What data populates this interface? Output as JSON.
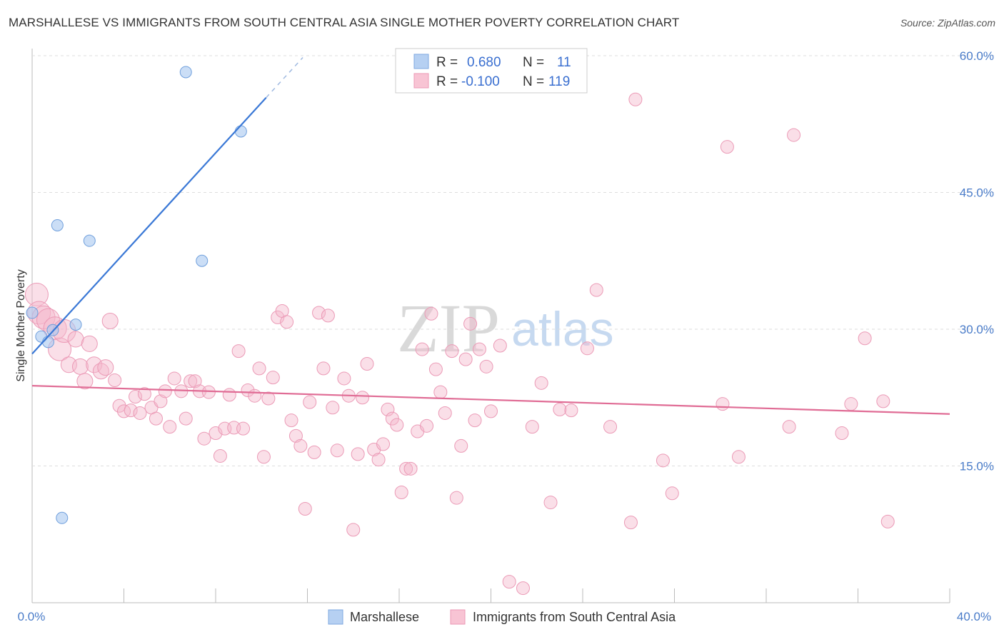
{
  "title": "MARSHALLESE VS IMMIGRANTS FROM SOUTH CENTRAL ASIA SINGLE MOTHER POVERTY CORRELATION CHART",
  "source": "Source: ZipAtlas.com",
  "watermark": {
    "zip": "ZIP",
    "atlas": "atlas"
  },
  "legend_box": {
    "rows": [
      {
        "r_label": "R =",
        "r_value": "0.680",
        "n_label": "N =",
        "n_value": "11"
      },
      {
        "r_label": "R =",
        "r_value": "-0.100",
        "n_label": "N =",
        "n_value": "119"
      }
    ]
  },
  "bottom_legend": {
    "marshallese": "Marshallese",
    "immigrants": "Immigrants from South Central Asia"
  },
  "chart_data": {
    "type": "scatter",
    "title": "MARSHALLESE VS IMMIGRANTS FROM SOUTH CENTRAL ASIA SINGLE MOTHER POVERTY CORRELATION CHART",
    "xlabel": "",
    "ylabel": "Single Mother Poverty",
    "xlim": [
      0,
      40
    ],
    "ylim": [
      0,
      60
    ],
    "x_ticks": [
      "0.0%",
      "40.0%"
    ],
    "y_ticks": [
      "15.0%",
      "30.0%",
      "45.0%",
      "60.0%"
    ],
    "y_tick_values": [
      15,
      30,
      45,
      60
    ],
    "grid": true,
    "legend_position": "top-center",
    "colors": {
      "marshallese": "#a8c8f0",
      "marshallese_line": "#3a78d6",
      "immigrants": "#f5b8cc",
      "immigrants_line": "#e06c95"
    },
    "series": [
      {
        "name": "Marshallese",
        "points": [
          [
            0.0,
            31.8
          ],
          [
            0.4,
            29.2
          ],
          [
            0.7,
            28.6
          ],
          [
            0.9,
            29.9
          ],
          [
            1.1,
            41.4
          ],
          [
            1.3,
            9.3
          ],
          [
            1.9,
            30.5
          ],
          [
            2.5,
            39.7
          ],
          [
            6.7,
            58.2
          ],
          [
            7.4,
            37.5
          ],
          [
            9.1,
            51.7
          ]
        ],
        "trend": {
          "x": [
            0.0,
            10.2
          ],
          "y": [
            27.3,
            55.4
          ],
          "dashed_to": [
            11.8,
            59.8
          ]
        }
      },
      {
        "name": "Immigrants from South Central Asia",
        "points": [
          [
            0.2,
            33.8
          ],
          [
            0.3,
            31.8
          ],
          [
            0.5,
            31.3
          ],
          [
            0.7,
            31.0
          ],
          [
            1.0,
            30.1
          ],
          [
            1.2,
            27.8
          ],
          [
            1.4,
            29.8
          ],
          [
            1.6,
            26.1
          ],
          [
            1.9,
            28.9
          ],
          [
            2.1,
            25.9
          ],
          [
            2.3,
            24.3
          ],
          [
            2.5,
            28.4
          ],
          [
            2.7,
            26.1
          ],
          [
            3.0,
            25.4
          ],
          [
            3.2,
            25.8
          ],
          [
            3.4,
            30.9
          ],
          [
            3.6,
            24.4
          ],
          [
            3.8,
            21.6
          ],
          [
            4.0,
            21.0
          ],
          [
            4.3,
            21.1
          ],
          [
            4.5,
            22.6
          ],
          [
            4.7,
            20.8
          ],
          [
            4.9,
            22.9
          ],
          [
            5.2,
            21.4
          ],
          [
            5.4,
            20.2
          ],
          [
            5.6,
            22.1
          ],
          [
            5.8,
            23.2
          ],
          [
            6.0,
            19.3
          ],
          [
            6.2,
            24.6
          ],
          [
            6.5,
            23.2
          ],
          [
            6.7,
            20.2
          ],
          [
            6.9,
            24.3
          ],
          [
            7.1,
            24.3
          ],
          [
            7.3,
            23.2
          ],
          [
            7.5,
            18.0
          ],
          [
            7.7,
            23.1
          ],
          [
            8.0,
            18.6
          ],
          [
            8.2,
            16.1
          ],
          [
            8.4,
            19.1
          ],
          [
            8.6,
            22.8
          ],
          [
            8.8,
            19.2
          ],
          [
            9.0,
            27.6
          ],
          [
            9.2,
            19.1
          ],
          [
            9.4,
            23.3
          ],
          [
            9.7,
            22.7
          ],
          [
            9.9,
            25.7
          ],
          [
            10.1,
            16.0
          ],
          [
            10.3,
            22.4
          ],
          [
            10.5,
            24.7
          ],
          [
            10.7,
            31.3
          ],
          [
            10.9,
            32.0
          ],
          [
            11.1,
            30.8
          ],
          [
            11.3,
            20.0
          ],
          [
            11.5,
            18.3
          ],
          [
            11.7,
            17.2
          ],
          [
            11.9,
            10.3
          ],
          [
            12.1,
            22.0
          ],
          [
            12.3,
            16.5
          ],
          [
            12.5,
            31.8
          ],
          [
            12.7,
            25.7
          ],
          [
            12.9,
            31.5
          ],
          [
            13.1,
            21.4
          ],
          [
            13.3,
            16.7
          ],
          [
            13.6,
            24.6
          ],
          [
            13.8,
            22.7
          ],
          [
            14.0,
            8.0
          ],
          [
            14.2,
            16.3
          ],
          [
            14.4,
            22.5
          ],
          [
            14.6,
            26.2
          ],
          [
            14.9,
            16.8
          ],
          [
            15.1,
            15.7
          ],
          [
            15.3,
            17.4
          ],
          [
            15.5,
            21.2
          ],
          [
            15.7,
            20.2
          ],
          [
            15.9,
            19.5
          ],
          [
            16.1,
            12.1
          ],
          [
            16.3,
            14.7
          ],
          [
            16.5,
            14.7
          ],
          [
            16.8,
            18.8
          ],
          [
            17.0,
            27.8
          ],
          [
            17.2,
            19.4
          ],
          [
            17.4,
            31.7
          ],
          [
            17.6,
            25.6
          ],
          [
            17.8,
            23.1
          ],
          [
            18.0,
            20.8
          ],
          [
            18.3,
            27.6
          ],
          [
            18.5,
            11.5
          ],
          [
            18.7,
            17.2
          ],
          [
            18.9,
            26.7
          ],
          [
            19.1,
            30.6
          ],
          [
            19.3,
            20.0
          ],
          [
            19.5,
            27.8
          ],
          [
            19.8,
            25.9
          ],
          [
            20.0,
            21.0
          ],
          [
            20.4,
            28.2
          ],
          [
            20.8,
            2.3
          ],
          [
            21.4,
            1.6
          ],
          [
            21.8,
            19.3
          ],
          [
            22.2,
            24.1
          ],
          [
            22.6,
            11.0
          ],
          [
            23.0,
            21.2
          ],
          [
            23.5,
            21.1
          ],
          [
            24.2,
            27.9
          ],
          [
            24.6,
            34.3
          ],
          [
            25.2,
            19.3
          ],
          [
            26.1,
            8.8
          ],
          [
            26.3,
            55.2
          ],
          [
            27.5,
            15.6
          ],
          [
            27.9,
            12.0
          ],
          [
            30.1,
            21.8
          ],
          [
            30.3,
            50.0
          ],
          [
            30.8,
            16.0
          ],
          [
            33.0,
            19.3
          ],
          [
            33.2,
            51.3
          ],
          [
            35.3,
            18.6
          ],
          [
            35.7,
            21.8
          ],
          [
            36.3,
            29.0
          ],
          [
            37.1,
            22.1
          ],
          [
            37.3,
            8.9
          ]
        ],
        "trend": {
          "x": [
            0.0,
            40.0
          ],
          "y": [
            23.8,
            20.7
          ]
        }
      }
    ]
  }
}
